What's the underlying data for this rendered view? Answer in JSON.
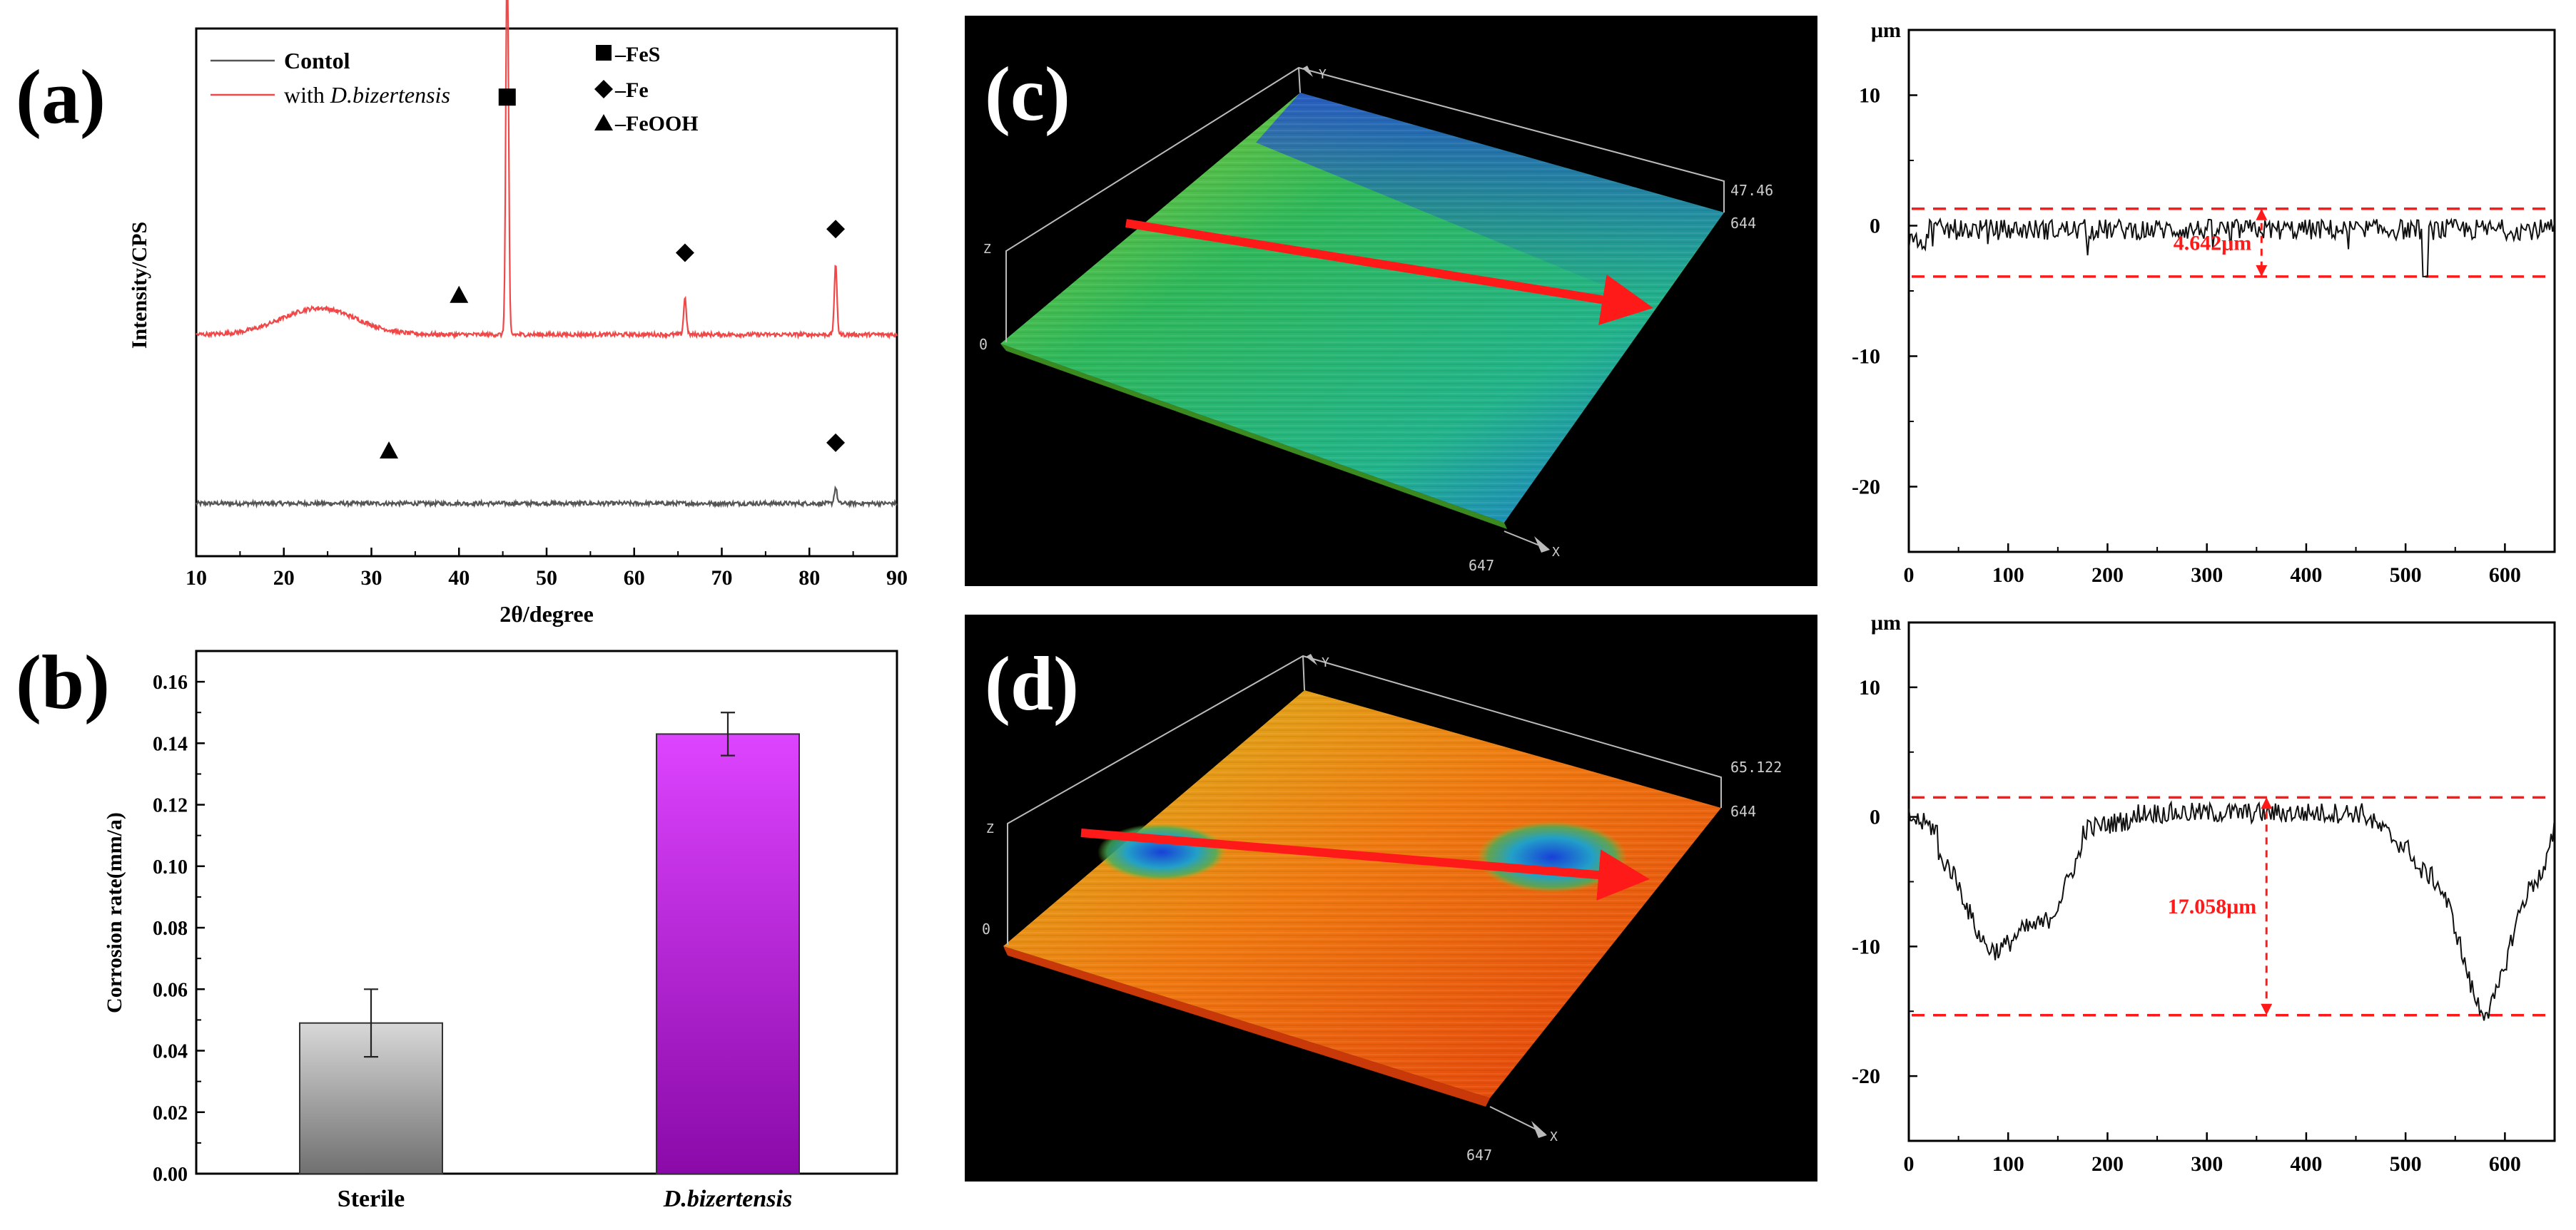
{
  "panels": {
    "a": "(a)",
    "b": "(b)",
    "c": "(c)",
    "d": "(d)"
  },
  "chart_data": [
    {
      "id": "a",
      "type": "line",
      "title": "",
      "xlabel": "2θ/degree",
      "ylabel": "Intensity/CPS",
      "xlim": [
        10,
        90
      ],
      "xticks": [
        10,
        20,
        30,
        40,
        50,
        60,
        70,
        80,
        90
      ],
      "legend": {
        "lines": [
          {
            "text": "Contol",
            "italic": "",
            "color": "#555555"
          },
          {
            "text": "with ",
            "italic": "D.bizertensis",
            "color": "#f04848"
          }
        ],
        "markers": [
          {
            "shape": "square",
            "label": "–FeS"
          },
          {
            "shape": "diamond",
            "label": "–Fe"
          },
          {
            "shape": "triangle",
            "label": "–FeOOH"
          }
        ]
      },
      "series": [
        {
          "name": "Contol",
          "color": "#555555",
          "baseline": 0.1,
          "peaks": [
            {
              "x": 83.0,
              "h": 0.03
            }
          ],
          "noise": 0.008
        },
        {
          "name": "with D.bizertensis",
          "color": "#f04848",
          "baseline": 0.42,
          "hump": {
            "center": 24,
            "width": 6,
            "h": 0.05
          },
          "peaks": [
            {
              "x": 45.5,
              "h": 0.72
            },
            {
              "x": 65.8,
              "h": 0.07
            },
            {
              "x": 83.0,
              "h": 0.13
            }
          ],
          "noise": 0.008
        }
      ],
      "ylim": [
        0,
        1
      ],
      "markers": [
        {
          "shape": "square",
          "x": 45.5,
          "y": 0.87
        },
        {
          "shape": "diamond",
          "x": 65.8,
          "y": 0.575
        },
        {
          "shape": "diamond",
          "x": 83.0,
          "y": 0.62
        },
        {
          "shape": "triangle",
          "x": 40.0,
          "y": 0.495
        },
        {
          "shape": "triangle",
          "x": 32.0,
          "y": 0.2
        },
        {
          "shape": "diamond",
          "x": 83.0,
          "y": 0.215
        }
      ]
    },
    {
      "id": "b",
      "type": "bar",
      "title": "",
      "xlabel": "",
      "ylabel": "Corrosion rate(mm/a)",
      "ylim": [
        0,
        0.17
      ],
      "yticks": [
        0.0,
        0.02,
        0.04,
        0.06,
        0.08,
        0.1,
        0.12,
        0.14,
        0.16
      ],
      "categories": [
        "Sterile",
        "D.bizertensis"
      ],
      "category_italic": [
        false,
        true
      ],
      "values": [
        0.049,
        0.143
      ],
      "errors": [
        0.011,
        0.007
      ],
      "colors_top": [
        "#d8d8d8",
        "#dd44ff"
      ],
      "colors_bottom": [
        "#707070",
        "#8a0aa8"
      ]
    },
    {
      "id": "c_profile",
      "type": "line",
      "title": "",
      "xlabel": "",
      "ylabel": "μm",
      "xlim": [
        0,
        650
      ],
      "ylim": [
        -25,
        15
      ],
      "xticks": [
        0,
        100,
        200,
        300,
        400,
        500,
        600
      ],
      "yticks": [
        10,
        0,
        -10,
        -20
      ],
      "shape": "flat",
      "ref_lines": [
        1.3,
        -3.9
      ],
      "annotation": {
        "text": "4.642μm",
        "x": 355
      },
      "color": "#111111"
    },
    {
      "id": "d_profile",
      "type": "line",
      "title": "",
      "xlabel": "",
      "ylabel": "μm",
      "xlim": [
        0,
        650
      ],
      "ylim": [
        -25,
        15
      ],
      "xticks": [
        0,
        100,
        200,
        300,
        400,
        500,
        600
      ],
      "yticks": [
        10,
        0,
        -10,
        -20
      ],
      "shape": "pits",
      "ref_lines": [
        1.5,
        -15.3
      ],
      "annotation": {
        "text": "17.058μm",
        "x": 360
      },
      "color": "#111111"
    }
  ],
  "surface_c": {
    "z_label": "Z",
    "y_label": "Y",
    "x_label": "X",
    "max_value": "47.46",
    "y_extent": "644",
    "x_extent": "647",
    "origin": "0"
  },
  "surface_d": {
    "z_label": "Z",
    "y_label": "Y",
    "x_label": "X",
    "max_value": "65.122",
    "y_extent": "644",
    "x_extent": "647",
    "origin": "0"
  }
}
